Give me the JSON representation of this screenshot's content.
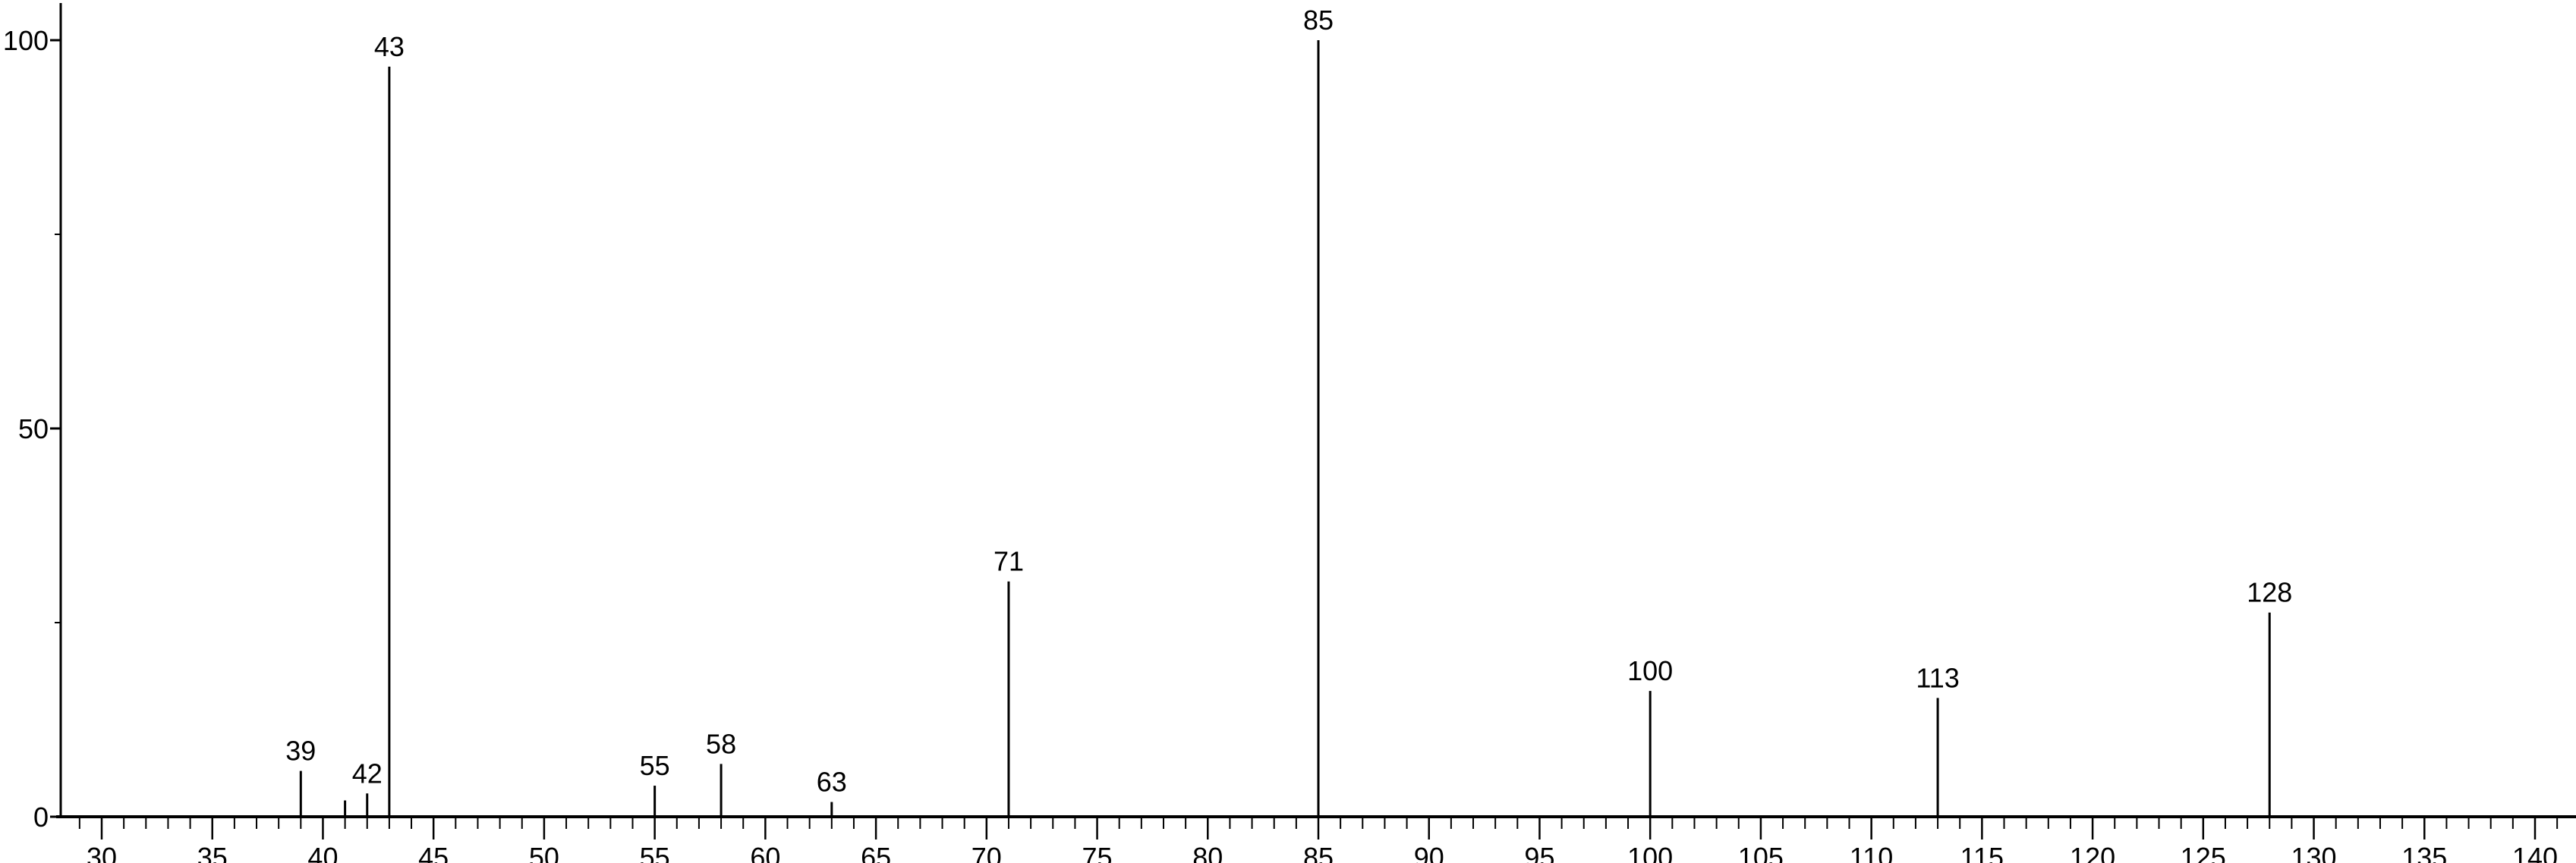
{
  "chart_data": {
    "type": "bar",
    "title": "",
    "xlabel": "",
    "ylabel": "",
    "xlim": [
      28,
      141
    ],
    "ylim": [
      0,
      100
    ],
    "grid": false,
    "x_ticks": [
      30,
      35,
      40,
      45,
      50,
      55,
      60,
      65,
      70,
      75,
      80,
      85,
      90,
      95,
      100,
      105,
      110,
      115,
      120,
      125,
      130,
      135,
      140
    ],
    "y_ticks": [
      0,
      50,
      100
    ],
    "y_minor_ticks": [
      25,
      75
    ],
    "x_minor_tick_step": 1,
    "bar_color": "#000000",
    "peaks": [
      {
        "x": 39,
        "y": 5.9,
        "label": "39"
      },
      {
        "x": 41,
        "y": 2.1,
        "label": ""
      },
      {
        "x": 42,
        "y": 3.0,
        "label": "42"
      },
      {
        "x": 43,
        "y": 96.6,
        "label": "43"
      },
      {
        "x": 55,
        "y": 4.0,
        "label": "55"
      },
      {
        "x": 58,
        "y": 6.8,
        "label": "58"
      },
      {
        "x": 63,
        "y": 1.9,
        "label": "63"
      },
      {
        "x": 71,
        "y": 30.3,
        "label": "71"
      },
      {
        "x": 85,
        "y": 100,
        "label": "85"
      },
      {
        "x": 100,
        "y": 16.2,
        "label": "100"
      },
      {
        "x": 113,
        "y": 15.3,
        "label": "113"
      },
      {
        "x": 128,
        "y": 26.3,
        "label": "128"
      }
    ]
  }
}
